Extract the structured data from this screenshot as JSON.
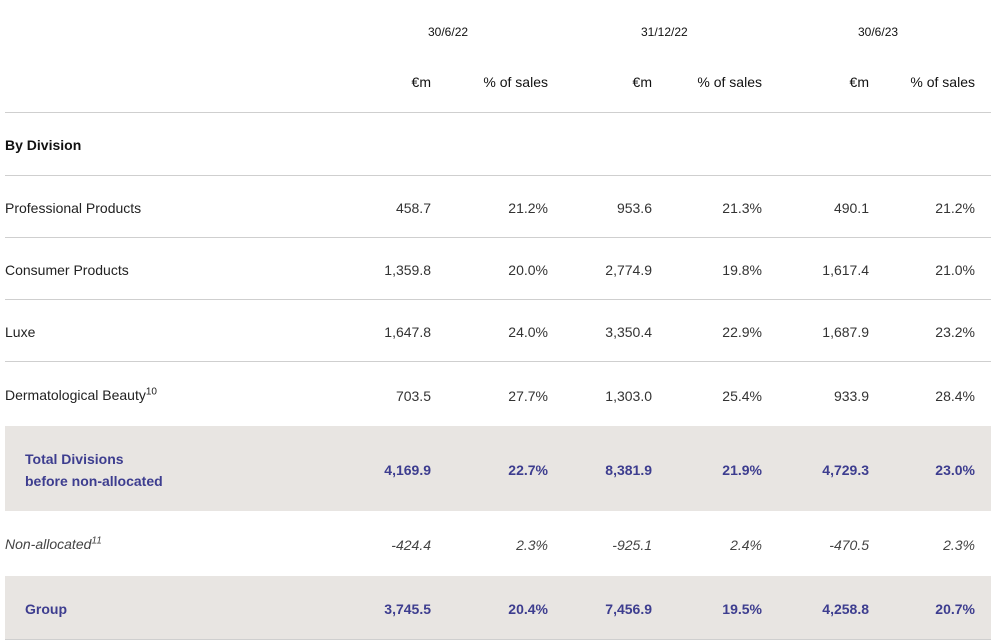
{
  "dates": [
    "30/6/22",
    "31/12/22",
    "30/6/23"
  ],
  "col_unit": "€m",
  "col_pct": "% of sales",
  "section_title": "By Division",
  "rows": [
    {
      "label": "Professional Products",
      "sup": "",
      "values": [
        "458.7",
        "21.2%",
        "953.6",
        "21.3%",
        "490.1",
        "21.2%"
      ]
    },
    {
      "label": "Consumer Products",
      "sup": "",
      "values": [
        "1,359.8",
        "20.0%",
        "2,774.9",
        "19.8%",
        "1,617.4",
        "21.0%"
      ]
    },
    {
      "label": "Luxe",
      "sup": "",
      "values": [
        "1,647.8",
        "24.0%",
        "3,350.4",
        "22.9%",
        "1,687.9",
        "23.2%"
      ]
    },
    {
      "label": "Dermatological Beauty",
      "sup": "10",
      "values": [
        "703.5",
        "27.7%",
        "1,303.0",
        "25.4%",
        "933.9",
        "28.4%"
      ]
    },
    {
      "label_line1": "Total Divisions",
      "label_line2": "before non-allocated",
      "values": [
        "4,169.9",
        "22.7%",
        "8,381.9",
        "21.9%",
        "4,729.3",
        "23.0%"
      ]
    },
    {
      "label": "Non-allocated",
      "sup": "11",
      "values": [
        "-424.4",
        "2.3%",
        "-925.1",
        "2.4%",
        "-470.5",
        "2.3%"
      ]
    },
    {
      "label": "Group",
      "sup": "",
      "values": [
        "3,745.5",
        "20.4%",
        "7,456.9",
        "19.5%",
        "4,258.8",
        "20.7%"
      ]
    }
  ]
}
